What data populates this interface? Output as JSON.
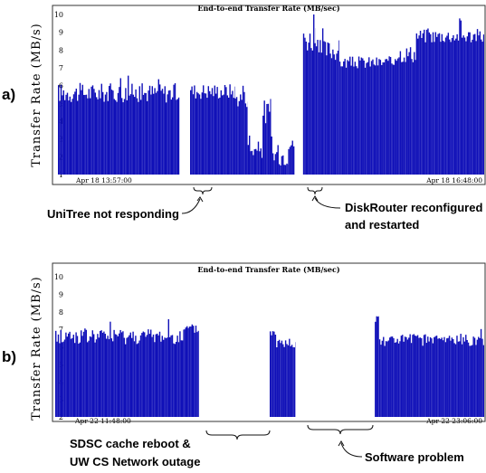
{
  "chart_data": [
    {
      "type": "bar",
      "panel_label": "a)",
      "title": "End-to-end Transfer Rate (MB/sec)",
      "ylabel": "Transfer Rate (MB/s)",
      "ylim": [
        1,
        10
      ],
      "yticks": [
        "1",
        "2",
        "3",
        "4",
        "5",
        "6",
        "7",
        "8",
        "9",
        "10"
      ],
      "x_start_label": "Apr 18 13:57:00",
      "x_end_label": "Apr 18 16:48:00",
      "color": "#1010b8",
      "segments": [
        {
          "range": [
            0.0,
            0.285
          ],
          "mean": 5.6,
          "jitter": 0.55
        },
        {
          "range": [
            0.31,
            0.415
          ],
          "mean": 5.7,
          "jitter": 0.45
        },
        {
          "range": [
            0.415,
            0.445
          ],
          "mean": 5.3,
          "jitter": 0.5
        },
        {
          "range": [
            0.445,
            0.48
          ],
          "mean": 2.4,
          "jitter": 0.5
        },
        {
          "range": [
            0.48,
            0.5
          ],
          "mean": 4.5,
          "jitter": 0.8
        },
        {
          "range": [
            0.5,
            0.54
          ],
          "mean": 2.1,
          "jitter": 0.6
        },
        {
          "range": [
            0.54,
            0.555
          ],
          "mean": 2.7,
          "jitter": 0.3
        },
        {
          "range": [
            0.575,
            0.605
          ],
          "mean": 8.6,
          "jitter": 0.7
        },
        {
          "range": [
            0.605,
            0.66
          ],
          "mean": 8.0,
          "jitter": 0.6
        },
        {
          "range": [
            0.66,
            0.79
          ],
          "mean": 7.3,
          "jitter": 0.35
        },
        {
          "range": [
            0.79,
            0.84
          ],
          "mean": 7.8,
          "jitter": 0.5
        },
        {
          "range": [
            0.84,
            1.0
          ],
          "mean": 8.8,
          "jitter": 0.4
        }
      ],
      "annotations": [
        {
          "text": "UniTree not responding"
        },
        {
          "text": "DiskRouter reconfigured"
        },
        {
          "text": "and restarted"
        }
      ]
    },
    {
      "type": "bar",
      "panel_label": "b)",
      "title": "End-to-end Transfer Rate (MB/sec)",
      "ylabel": "Transfer Rate (MB/s)",
      "ylim": [
        2,
        10
      ],
      "yticks": [
        "2",
        "3",
        "4",
        "5",
        "6",
        "7",
        "8",
        "9",
        "10"
      ],
      "x_start_label": "Apr 22 11:48:00",
      "x_end_label": "Apr 22 23:06:00",
      "color": "#1010b8",
      "segments": [
        {
          "range": [
            0.0,
            0.3
          ],
          "mean": 6.6,
          "jitter": 0.45
        },
        {
          "range": [
            0.3,
            0.335
          ],
          "mean": 7.0,
          "jitter": 0.3
        },
        {
          "range": [
            0.5,
            0.515
          ],
          "mean": 6.8,
          "jitter": 0.35
        },
        {
          "range": [
            0.515,
            0.56
          ],
          "mean": 6.2,
          "jitter": 0.3
        },
        {
          "range": [
            0.745,
            0.755
          ],
          "mean": 7.8,
          "jitter": 0.5
        },
        {
          "range": [
            0.755,
            1.0
          ],
          "mean": 6.4,
          "jitter": 0.35
        }
      ],
      "annotations": [
        {
          "text": "SDSC cache reboot  &"
        },
        {
          "text": "UW CS Network outage"
        },
        {
          "text": "Software problem"
        }
      ]
    }
  ]
}
